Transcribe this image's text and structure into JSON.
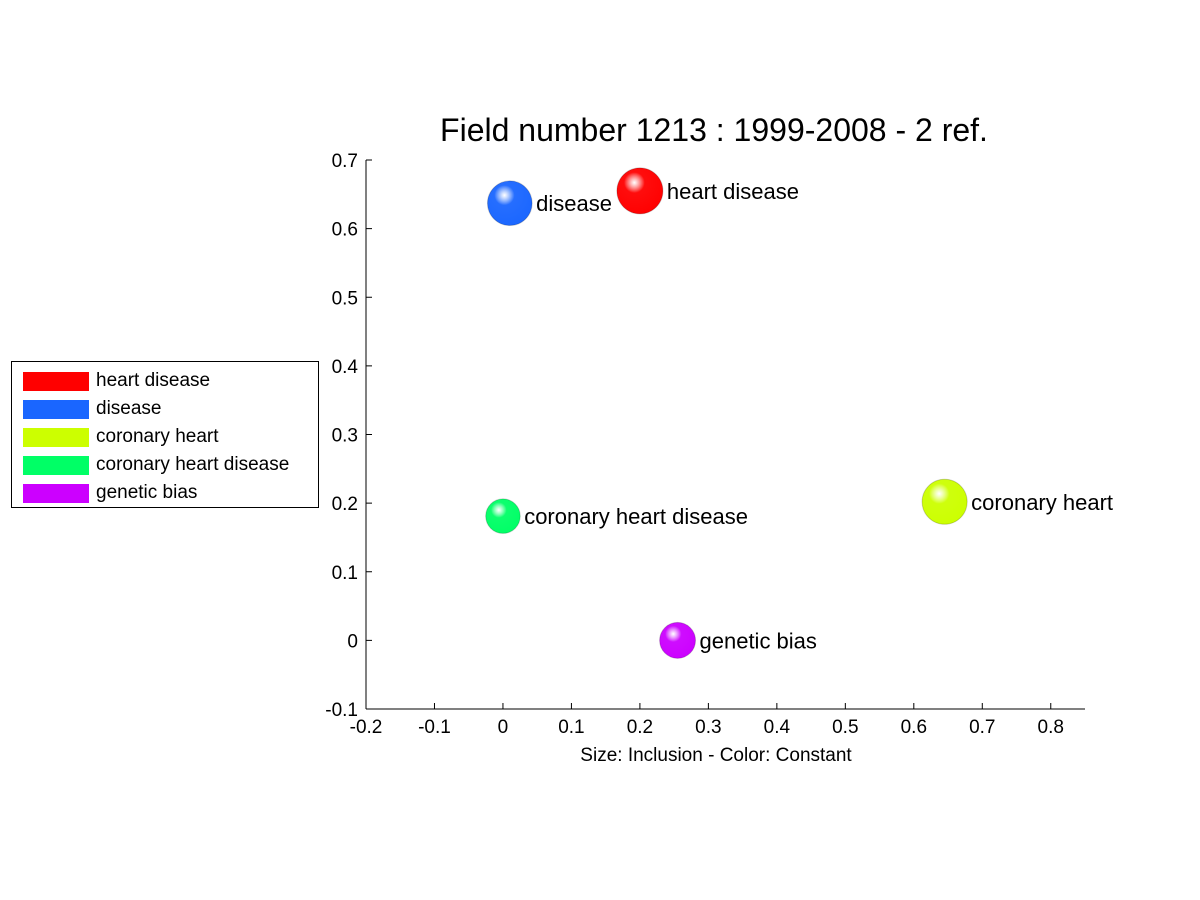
{
  "chart_data": {
    "type": "scatter",
    "title": "Field number 1213 : 1999-2008  - 2 ref.",
    "xlabel": "Size: Inclusion - Color: Constant",
    "ylabel": "",
    "xlim": [
      -0.2,
      0.85
    ],
    "ylim": [
      -0.1,
      0.7
    ],
    "x_ticks": [
      "-0.2",
      "-0.1",
      "0",
      "0.1",
      "0.2",
      "0.3",
      "0.4",
      "0.5",
      "0.6",
      "0.7",
      "0.8"
    ],
    "y_ticks": [
      "-0.1",
      "0",
      "0.1",
      "0.2",
      "0.3",
      "0.4",
      "0.5",
      "0.6",
      "0.7"
    ],
    "grid": false,
    "legend_position": "left",
    "points": [
      {
        "label": "heart disease",
        "x": 0.2,
        "y": 0.655,
        "size": 1.0,
        "color": "#ff0000"
      },
      {
        "label": "disease",
        "x": 0.01,
        "y": 0.637,
        "size": 0.97,
        "color": "#1a66ff"
      },
      {
        "label": "coronary heart",
        "x": 0.645,
        "y": 0.202,
        "size": 0.98,
        "color": "#ccff00"
      },
      {
        "label": "coronary heart disease",
        "x": 0.0,
        "y": 0.181,
        "size": 0.75,
        "color": "#00ff66"
      },
      {
        "label": "genetic bias",
        "x": 0.255,
        "y": 0.0,
        "size": 0.78,
        "color": "#cc00ff"
      }
    ]
  }
}
